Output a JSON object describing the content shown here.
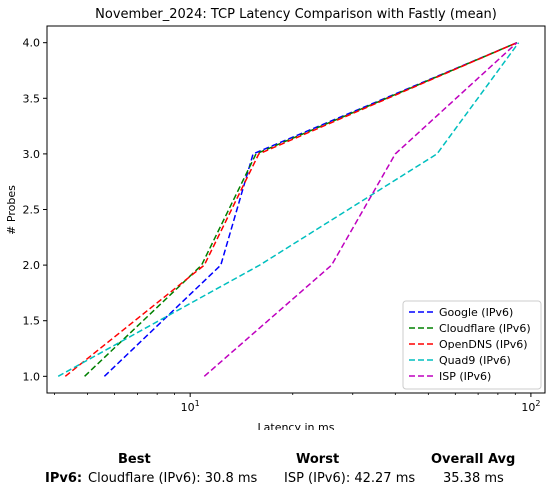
{
  "chart_data": {
    "type": "line",
    "title": "November_2024: TCP Latency Comparison with Fastly (mean)",
    "xlabel": "Latency in ms",
    "ylabel": "# Probes",
    "xscale": "log",
    "xlim": [
      3.8,
      110
    ],
    "ylim": [
      0.85,
      4.15
    ],
    "xticks": [
      {
        "value": 10,
        "label": "10^1"
      },
      {
        "value": 100,
        "label": "10^2"
      }
    ],
    "yticks": [
      "1.0",
      "1.5",
      "2.0",
      "2.5",
      "3.0",
      "3.5",
      "4.0"
    ],
    "legend_position": "bottom-right",
    "series": [
      {
        "name": "Google (IPv6)",
        "color": "#0000ff",
        "x": [
          5.6,
          12.3,
          15.3,
          91
        ],
        "y": [
          1,
          2,
          3,
          4
        ]
      },
      {
        "name": "Cloudflare (IPv6)",
        "color": "#008000",
        "x": [
          4.9,
          10.8,
          15.6,
          91
        ],
        "y": [
          1,
          2,
          3,
          4
        ]
      },
      {
        "name": "OpenDNS (IPv6)",
        "color": "#ff0000",
        "x": [
          4.3,
          11.0,
          15.9,
          91
        ],
        "y": [
          1,
          2,
          3,
          4
        ]
      },
      {
        "name": "Quad9 (IPv6)",
        "color": "#00bfbf",
        "x": [
          4.1,
          16.0,
          53.0,
          92
        ],
        "y": [
          1,
          2,
          3,
          4
        ]
      },
      {
        "name": "ISP (IPv6)",
        "color": "#bf00bf",
        "x": [
          11.0,
          26.0,
          40.0,
          91
        ],
        "y": [
          1,
          2,
          3,
          4
        ]
      }
    ]
  },
  "summary": {
    "best_header": "Best",
    "worst_header": "Worst",
    "avg_header": "Overall Avg",
    "row_label": "IPv6:",
    "best_value": "Cloudflare (IPv6): 30.8 ms",
    "worst_value": "ISP (IPv6): 42.27 ms",
    "avg_value": "35.38 ms"
  }
}
